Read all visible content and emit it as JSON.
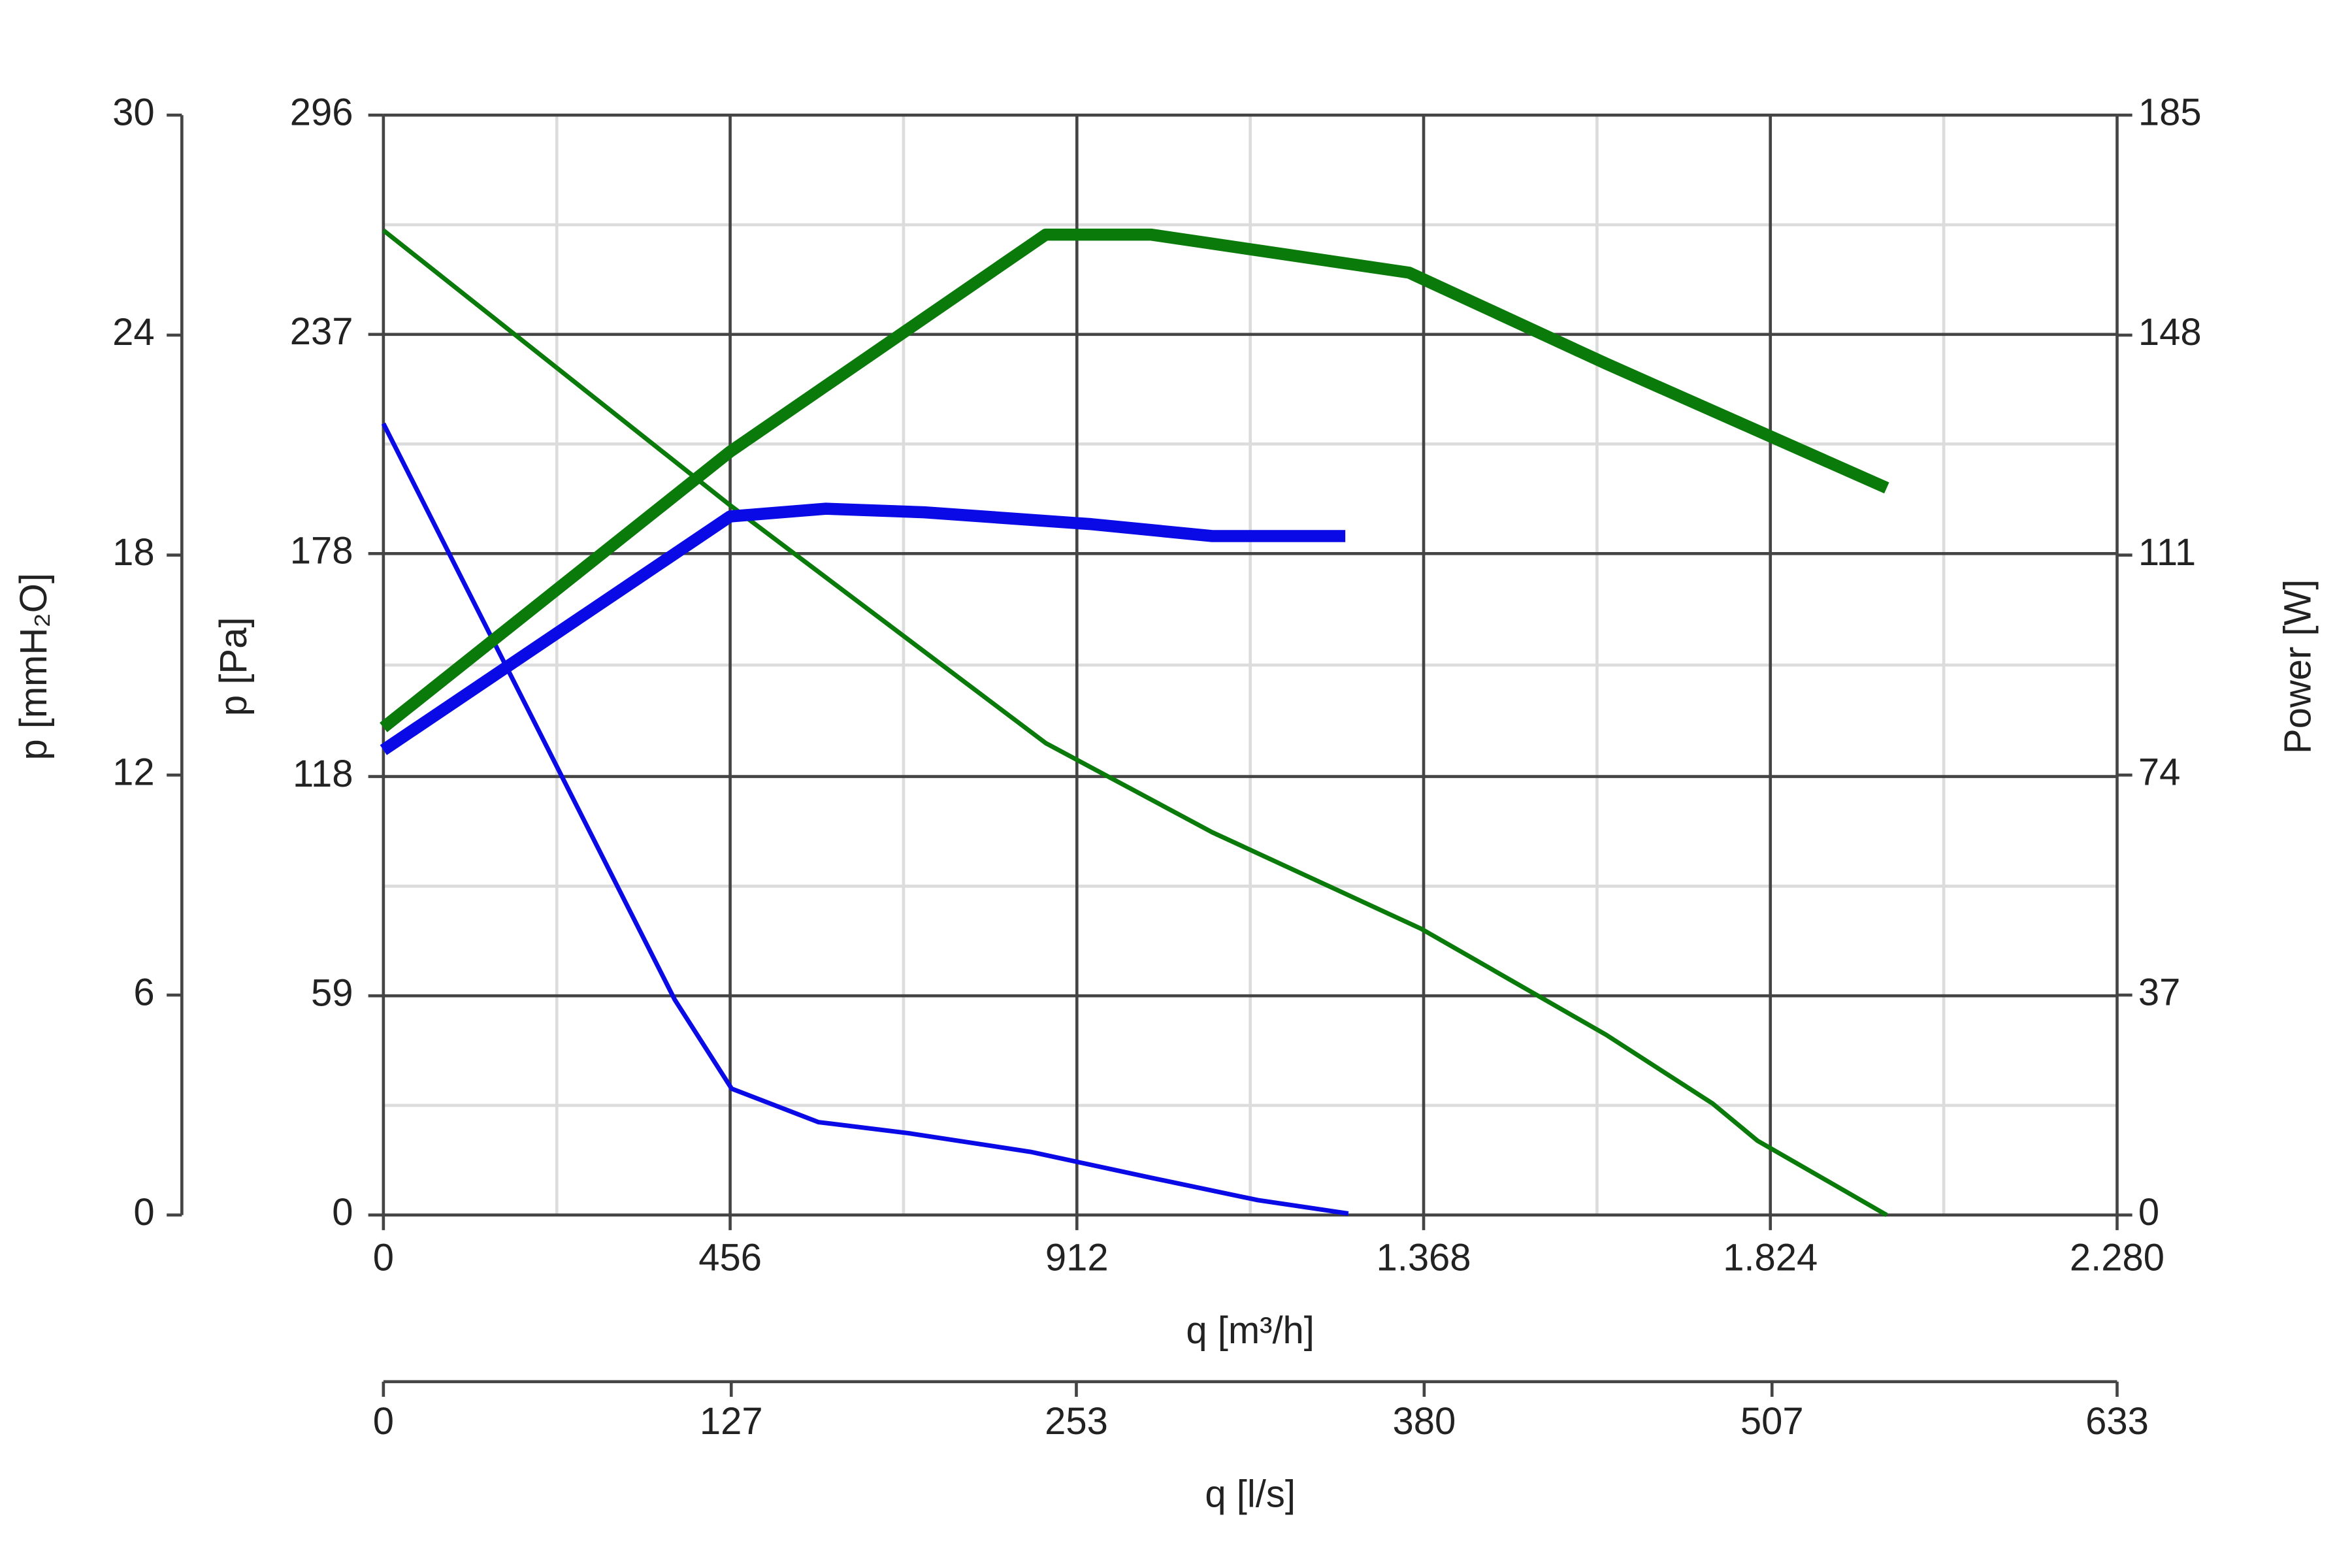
{
  "chart_data": {
    "type": "line",
    "xlabel": "q [m³/h]",
    "xlim": [
      0,
      2280
    ],
    "xticks": [
      0,
      456,
      912,
      {
        "value": 1368,
        "label": "1.368"
      },
      {
        "value": 1824,
        "label": "1.824"
      },
      {
        "value": 2280,
        "label": "2.280"
      }
    ],
    "x2label": "q [l/s]",
    "x2lim": [
      0,
      633
    ],
    "x2ticks": [
      0,
      127,
      253,
      380,
      507,
      633
    ],
    "ylabel": "p [Pa]",
    "ylim": [
      0,
      296
    ],
    "yticks": [
      0,
      59,
      118,
      178,
      237,
      296
    ],
    "y3label": "p [mmH₂O]",
    "y3lim": [
      0,
      30
    ],
    "y3ticks": [
      0,
      6,
      12,
      18,
      24,
      30
    ],
    "y2label": "Power [W]",
    "y2lim": [
      0,
      185
    ],
    "y2ticks": [
      0,
      37,
      74,
      111,
      148,
      185
    ],
    "grid": true,
    "series": [
      {
        "color": "#0a0ae6",
        "width": 3,
        "x": [
          0,
          383,
          458,
          572,
          691,
          851,
          1010,
          1150,
          1269
        ],
        "values": [
          213,
          58,
          34,
          25,
          22,
          17,
          10,
          4,
          0.4
        ]
      },
      {
        "color": "#0a7a0a",
        "width": 3,
        "x": [
          0,
          456,
          871,
          1090,
          1365,
          1608,
          1748,
          1807,
          1977
        ],
        "values": [
          265,
          191,
          127,
          103,
          77,
          48.5,
          30,
          20,
          0
        ]
      },
      {
        "color": "#0a0ae6",
        "width": 8,
        "axis": "y2",
        "x": [
          0,
          456,
          582,
          711,
          931,
          1090,
          1265
        ],
        "values": [
          78.2,
          117.5,
          118.8,
          118.2,
          116.2,
          114.2,
          114.2
        ]
      },
      {
        "color": "#0a7a0a",
        "width": 8,
        "axis": "y2",
        "x": [
          0,
          456,
          871,
          1010,
          1349,
          1608,
          1977
        ],
        "values": [
          82,
          128.4,
          164.9,
          164.9,
          158.5,
          143.2,
          122.3
        ]
      }
    ]
  }
}
